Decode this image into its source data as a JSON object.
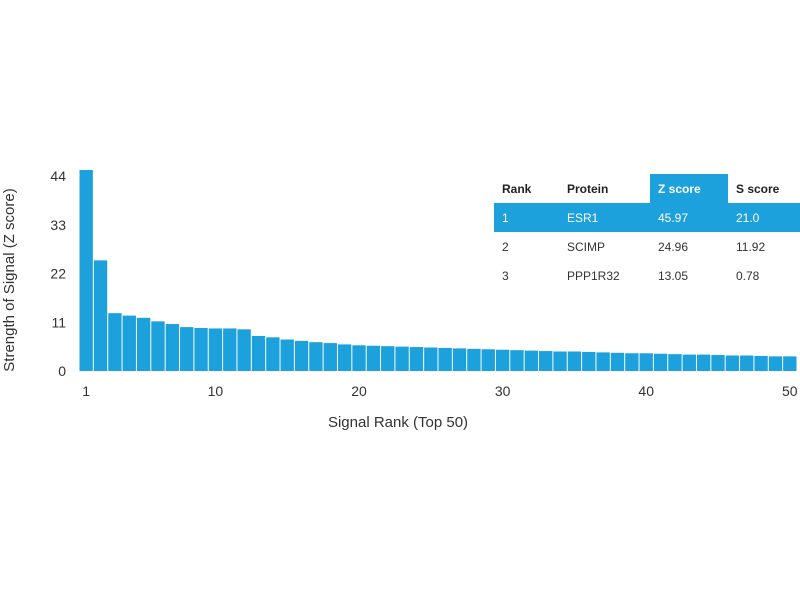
{
  "chart_data": {
    "type": "bar",
    "xlabel": "Signal Rank (Top 50)",
    "ylabel": "Strength of Signal (Z score)",
    "ylim": [
      0,
      44
    ],
    "yticks": [
      0,
      11,
      22,
      33,
      44
    ],
    "xticks": [
      1,
      10,
      20,
      30,
      40,
      50
    ],
    "grid": false,
    "bar_color": "#1da1dc",
    "x": [
      1,
      2,
      3,
      4,
      5,
      6,
      7,
      8,
      9,
      10,
      11,
      12,
      13,
      14,
      15,
      16,
      17,
      18,
      19,
      20,
      21,
      22,
      23,
      24,
      25,
      26,
      27,
      28,
      29,
      30,
      31,
      32,
      33,
      34,
      35,
      36,
      37,
      38,
      39,
      40,
      41,
      42,
      43,
      44,
      45,
      46,
      47,
      48,
      49,
      50
    ],
    "values": [
      45.97,
      24.96,
      13.05,
      12.5,
      12.0,
      11.2,
      10.6,
      9.9,
      9.7,
      9.6,
      9.6,
      9.4,
      7.9,
      7.6,
      7.1,
      6.8,
      6.5,
      6.3,
      6.0,
      5.8,
      5.7,
      5.6,
      5.5,
      5.4,
      5.3,
      5.2,
      5.1,
      5.0,
      4.9,
      4.8,
      4.7,
      4.6,
      4.5,
      4.4,
      4.4,
      4.3,
      4.2,
      4.1,
      4.0,
      4.0,
      3.9,
      3.8,
      3.7,
      3.7,
      3.6,
      3.5,
      3.5,
      3.4,
      3.3,
      3.3
    ]
  },
  "table": {
    "headers": [
      "Rank",
      "Protein",
      "Z score",
      "S score"
    ],
    "highlight_header_index": 2,
    "highlight_row_index": 0,
    "rows": [
      [
        "1",
        "ESR1",
        "45.97",
        "21.0"
      ],
      [
        "2",
        "SCIMP",
        "24.96",
        "11.92"
      ],
      [
        "3",
        "PPP1R32",
        "13.05",
        "0.78"
      ]
    ]
  }
}
